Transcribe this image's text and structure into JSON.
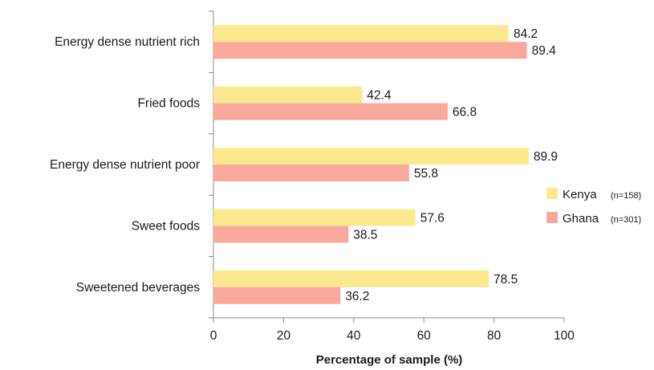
{
  "chart_data": {
    "type": "bar",
    "orientation": "horizontal",
    "categories": [
      "Energy dense nutrient rich",
      "Fried foods",
      "Energy dense nutrient poor",
      "Sweet foods",
      "Sweetened beverages"
    ],
    "series": [
      {
        "name": "Kenya",
        "note": "(n=158)",
        "color": "#fce98f",
        "values": [
          84.2,
          42.4,
          89.9,
          57.6,
          78.5
        ]
      },
      {
        "name": "Ghana",
        "note": "(n=301)",
        "color": "#f9a99c",
        "values": [
          89.4,
          66.8,
          55.8,
          38.5,
          36.2
        ]
      }
    ],
    "xlabel": "Percentage of sample (%)",
    "ylabel": "",
    "xlim": [
      0,
      100
    ],
    "xticks": [
      0,
      20,
      40,
      60,
      80,
      100
    ],
    "grid": false,
    "legend_position": "right"
  }
}
